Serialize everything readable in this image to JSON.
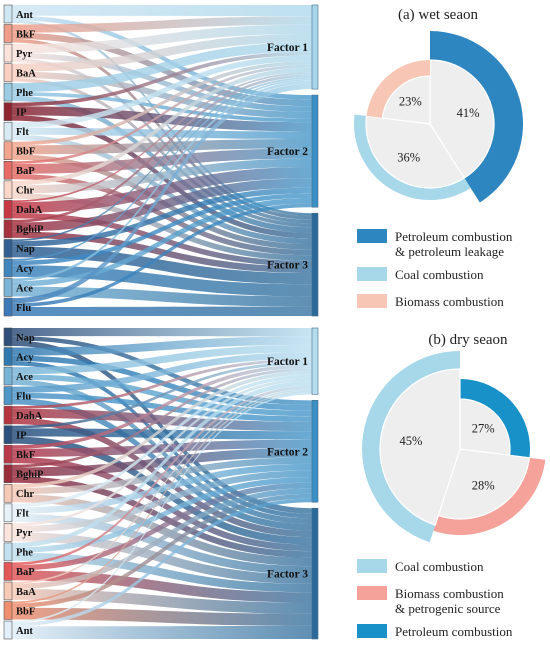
{
  "colors": {
    "wet_petroleum": "#2e86c1",
    "wet_coal": "#a6d8ea",
    "wet_biomass": "#f8c6b4",
    "dry_coal": "#a6d8ea",
    "dry_biomass": "#f4a29a",
    "dry_petroleum": "#1890c8",
    "center_fill": "#eeeeee"
  },
  "chart_data": [
    {
      "type": "sankey",
      "panel": "wet",
      "sources": [
        {
          "name": "Ant",
          "color": "#cfe6f3"
        },
        {
          "name": "BkF",
          "color": "#ef9d88"
        },
        {
          "name": "Pyr",
          "color": "#fbe3dc"
        },
        {
          "name": "BaA",
          "color": "#f9d0c2"
        },
        {
          "name": "Phe",
          "color": "#9ccbe4"
        },
        {
          "name": "IP",
          "color": "#8f2330"
        },
        {
          "name": "Flt",
          "color": "#d8eaf4"
        },
        {
          "name": "BbF",
          "color": "#f2a48c"
        },
        {
          "name": "BaP",
          "color": "#e76a64"
        },
        {
          "name": "Chr",
          "color": "#fad7c9"
        },
        {
          "name": "DahA",
          "color": "#c83844"
        },
        {
          "name": "BghiP",
          "color": "#a7303e"
        },
        {
          "name": "Nap",
          "color": "#2f5f93"
        },
        {
          "name": "Acy",
          "color": "#3f86bf"
        },
        {
          "name": "Ace",
          "color": "#7ab5d8"
        },
        {
          "name": "Flu",
          "color": "#3b7ab7"
        }
      ],
      "targets": [
        {
          "name": "Factor 1",
          "color": "#a9d6ea"
        },
        {
          "name": "Factor 2",
          "color": "#3a8fc5"
        },
        {
          "name": "Factor 3",
          "color": "#2a6a9a"
        }
      ],
      "links": {
        "Ant": [
          0.6,
          0.25,
          0.15
        ],
        "BkF": [
          0.45,
          0.35,
          0.2
        ],
        "Pyr": [
          0.5,
          0.3,
          0.2
        ],
        "BaA": [
          0.45,
          0.35,
          0.2
        ],
        "Phe": [
          0.5,
          0.2,
          0.3
        ],
        "IP": [
          0.2,
          0.5,
          0.3
        ],
        "Flt": [
          0.3,
          0.4,
          0.3
        ],
        "BbF": [
          0.2,
          0.5,
          0.3
        ],
        "BaP": [
          0.15,
          0.55,
          0.3
        ],
        "Chr": [
          0.25,
          0.45,
          0.3
        ],
        "DahA": [
          0.1,
          0.6,
          0.3
        ],
        "BghiP": [
          0.15,
          0.5,
          0.35
        ],
        "Nap": [
          0.1,
          0.3,
          0.6
        ],
        "Acy": [
          0.1,
          0.25,
          0.65
        ],
        "Ace": [
          0.15,
          0.3,
          0.55
        ],
        "Flu": [
          0.3,
          0.2,
          0.5
        ]
      }
    },
    {
      "type": "sankey",
      "panel": "dry",
      "sources": [
        {
          "name": "Nap",
          "color": "#2f4f7a"
        },
        {
          "name": "Acy",
          "color": "#2f78b0"
        },
        {
          "name": "Ace",
          "color": "#78b4d6"
        },
        {
          "name": "Flu",
          "color": "#4f96c8"
        },
        {
          "name": "DahA",
          "color": "#b43440"
        },
        {
          "name": "IP",
          "color": "#2a507e"
        },
        {
          "name": "BkF",
          "color": "#b9384a"
        },
        {
          "name": "BghiP",
          "color": "#9a2c3c"
        },
        {
          "name": "Chr",
          "color": "#f6c9b7"
        },
        {
          "name": "Flt",
          "color": "#e6f1f8"
        },
        {
          "name": "Pyr",
          "color": "#fbe4dc"
        },
        {
          "name": "Phe",
          "color": "#c2e0ef"
        },
        {
          "name": "BaP",
          "color": "#e45758"
        },
        {
          "name": "BaA",
          "color": "#f7cab8"
        },
        {
          "name": "BbF",
          "color": "#ef8f6f"
        },
        {
          "name": "Ant",
          "color": "#e2eff8"
        }
      ],
      "targets": [
        {
          "name": "Factor 1",
          "color": "#b5dcee"
        },
        {
          "name": "Factor 2",
          "color": "#3a8fc5"
        },
        {
          "name": "Factor 3",
          "color": "#2a6a9a"
        }
      ],
      "links": {
        "Nap": [
          0.45,
          0.25,
          0.3
        ],
        "Acy": [
          0.45,
          0.3,
          0.25
        ],
        "Ace": [
          0.4,
          0.3,
          0.3
        ],
        "Flu": [
          0.35,
          0.3,
          0.35
        ],
        "DahA": [
          0.15,
          0.5,
          0.35
        ],
        "IP": [
          0.15,
          0.45,
          0.4
        ],
        "BkF": [
          0.2,
          0.45,
          0.35
        ],
        "BghiP": [
          0.15,
          0.5,
          0.35
        ],
        "Chr": [
          0.2,
          0.35,
          0.45
        ],
        "Flt": [
          0.2,
          0.35,
          0.45
        ],
        "Pyr": [
          0.15,
          0.35,
          0.5
        ],
        "Phe": [
          0.25,
          0.3,
          0.45
        ],
        "BaP": [
          0.15,
          0.3,
          0.55
        ],
        "BaA": [
          0.1,
          0.3,
          0.6
        ],
        "BbF": [
          0.1,
          0.25,
          0.65
        ],
        "Ant": [
          0.1,
          0.2,
          0.7
        ]
      }
    },
    {
      "type": "pie",
      "panel": "wet",
      "title": "(a) wet seaon",
      "slices": [
        {
          "label": "Petroleum combustion & petroleum leakage",
          "value": 41,
          "text": "41%",
          "color_key": "wet_petroleum"
        },
        {
          "label": "Coal combustion",
          "value": 36,
          "text": "36%",
          "color_key": "wet_coal"
        },
        {
          "label": "Biomass combustion",
          "value": 23,
          "text": "23%",
          "color_key": "wet_biomass"
        }
      ],
      "legend": [
        {
          "lines": [
            "Petroleum combustion",
            "& petroleum leakage"
          ],
          "color_key": "wet_petroleum"
        },
        {
          "lines": [
            "Coal combustion"
          ],
          "color_key": "wet_coal"
        },
        {
          "lines": [
            "Biomass combustion"
          ],
          "color_key": "wet_biomass"
        }
      ]
    },
    {
      "type": "pie",
      "panel": "dry",
      "title": "(b) dry seaon",
      "slices": [
        {
          "label": "Petroleum combustion",
          "value": 27,
          "text": "27%",
          "color_key": "dry_petroleum"
        },
        {
          "label": "Biomass combustion & petrogenic source",
          "value": 28,
          "text": "28%",
          "color_key": "dry_biomass"
        },
        {
          "label": "Coal combustion",
          "value": 45,
          "text": "45%",
          "color_key": "dry_coal"
        }
      ],
      "legend": [
        {
          "lines": [
            "Coal combustion"
          ],
          "color_key": "dry_coal"
        },
        {
          "lines": [
            "Biomass combustion",
            "& petrogenic source"
          ],
          "color_key": "dry_biomass"
        },
        {
          "lines": [
            "Petroleum combustion"
          ],
          "color_key": "dry_petroleum"
        }
      ]
    }
  ]
}
